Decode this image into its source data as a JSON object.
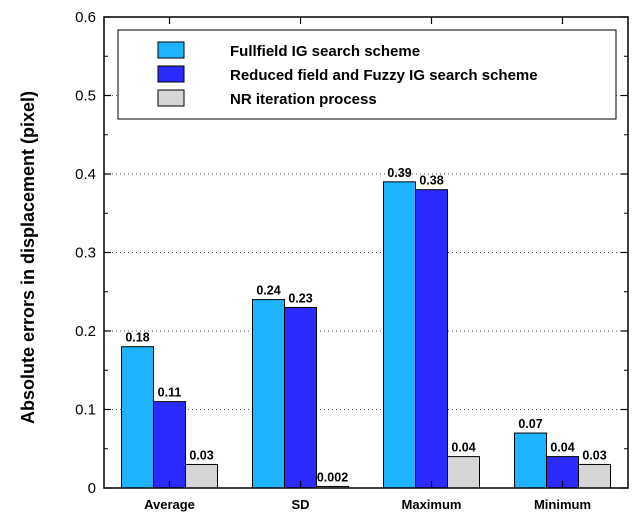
{
  "chart_data": {
    "type": "bar",
    "title": "",
    "xlabel": "",
    "ylabel": "Absolute errors in displacement (pixel)",
    "ylim": [
      0,
      0.6
    ],
    "yticks": [
      "0",
      "0.1",
      "0.2",
      "0.3",
      "0.4",
      "0.5",
      "0.6"
    ],
    "ytick_values": [
      0,
      0.1,
      0.2,
      0.3,
      0.4,
      0.5,
      0.6
    ],
    "grid": "horizontal dotted",
    "legend_position": "top-right",
    "categories": [
      "Average",
      "SD",
      "Maximum",
      "Minimum"
    ],
    "series": [
      {
        "name": "Fullfield IG search scheme",
        "color": "#1EB4FF",
        "values": [
          0.18,
          0.24,
          0.39,
          0.07
        ],
        "labels": [
          "0.18",
          "0.24",
          "0.39",
          "0.07"
        ]
      },
      {
        "name": "Reduced field and Fuzzy IG search scheme",
        "color": "#2B2BFF",
        "values": [
          0.11,
          0.23,
          0.38,
          0.04
        ],
        "labels": [
          "0.11",
          "0.23",
          "0.38",
          "0.04"
        ]
      },
      {
        "name": "NR iteration process",
        "color": "#D6D6D6",
        "values": [
          0.03,
          0.002,
          0.04,
          0.03
        ],
        "labels": [
          "0.03",
          "0.002",
          "0.04",
          "0.03"
        ]
      }
    ]
  }
}
